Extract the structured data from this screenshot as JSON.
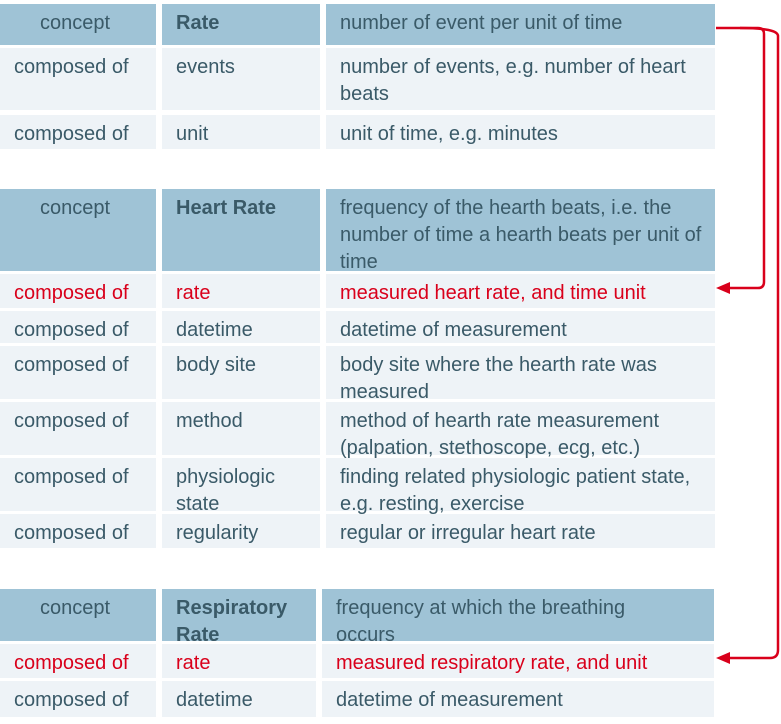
{
  "colors": {
    "header_bg": "#9fc3d6",
    "row_bg": "#eef3f7",
    "text": "#3a5a68",
    "highlight": "#d9001b",
    "arrow": "#d9001b"
  },
  "tables": [
    {
      "header": {
        "type": "concept",
        "name": "Rate",
        "description": "number of event per unit of time"
      },
      "rows": [
        {
          "type": "composed of",
          "name": "events",
          "description": "number of events, e.g. number of heart beats"
        },
        {
          "type": "composed of",
          "name": "unit",
          "description": "unit of time, e.g. minutes"
        }
      ]
    },
    {
      "header": {
        "type": "concept",
        "name": "Heart Rate",
        "description": "frequency of the hearth beats, i.e. the number of time a hearth beats per unit of time"
      },
      "rows": [
        {
          "type": "composed of",
          "name": "rate",
          "description": "measured heart rate, and time unit",
          "highlight": true
        },
        {
          "type": "composed of",
          "name": "datetime",
          "description": "datetime of measurement"
        },
        {
          "type": "composed of",
          "name": "body site",
          "description": "body site where the hearth rate was measured"
        },
        {
          "type": "composed of",
          "name": "method",
          "description": "method of hearth rate measurement (palpation, stethoscope, ecg, etc.)"
        },
        {
          "type": "composed of",
          "name": "physiologic state",
          "description": "finding related physiologic patient state, e.g. resting, exercise"
        },
        {
          "type": "composed of",
          "name": "regularity",
          "description": "regular or irregular heart rate"
        }
      ]
    },
    {
      "header": {
        "type": "concept",
        "name": "Respiratory Rate",
        "description": "frequency at which the breathing occurs"
      },
      "rows": [
        {
          "type": "composed of",
          "name": "rate",
          "description": "measured respiratory rate, and unit",
          "highlight": true
        },
        {
          "type": "composed of",
          "name": "datetime",
          "description": "datetime of measurement"
        }
      ]
    }
  ]
}
